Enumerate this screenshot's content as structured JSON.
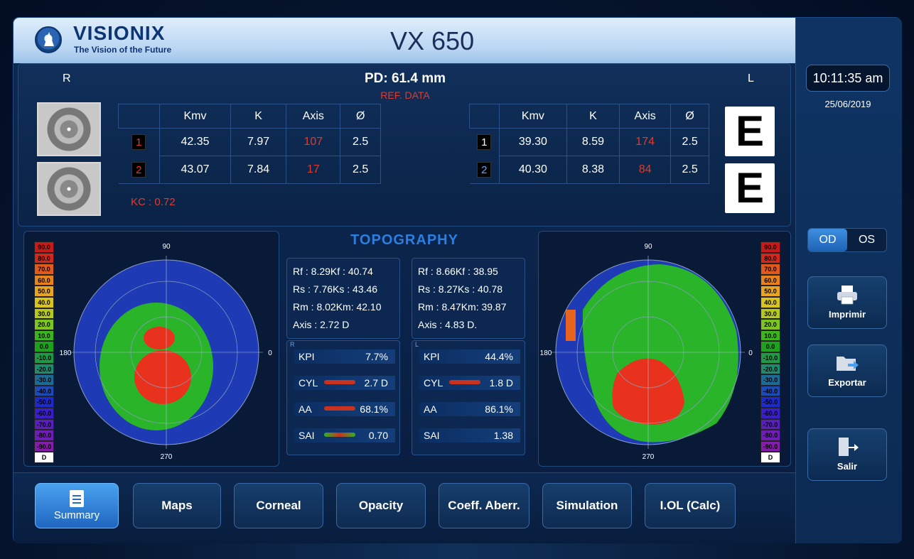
{
  "header": {
    "brand": "VISIONIX",
    "tagline": "The Vision of the Future",
    "model": "VX 650"
  },
  "right_rail": {
    "time": "10:11:35 am",
    "date": "25/06/2019",
    "eye_toggle": {
      "od": "OD",
      "os": "OS",
      "selected": "OD"
    },
    "buttons": {
      "print": "Imprimir",
      "export": "Exportar",
      "exit": "Salir"
    }
  },
  "info": {
    "right_label": "R",
    "left_label": "L",
    "pd": "PD: 61.4 mm",
    "ref": "REF. DATA",
    "headers": [
      "Kmv",
      "K",
      "Axis",
      "Ø"
    ],
    "right_rows": [
      {
        "index": "1",
        "kmv": "42.35",
        "k": "7.97",
        "axis": "107",
        "diam": "2.5"
      },
      {
        "index": "2",
        "kmv": "43.07",
        "k": "7.84",
        "axis": "17",
        "diam": "2.5"
      }
    ],
    "left_rows": [
      {
        "index": "1",
        "kmv": "39.30",
        "k": "8.59",
        "axis": "174",
        "diam": "2.5"
      },
      {
        "index": "2",
        "kmv": "40.30",
        "k": "8.38",
        "axis": "84",
        "diam": "2.5"
      }
    ],
    "kc": "KC :  0.72",
    "chart_letters": [
      "E",
      "E"
    ]
  },
  "topography": {
    "title": "TOPOGRAPHY",
    "scale": [
      "90.0",
      "80.0",
      "70.0",
      "60.0",
      "50.0",
      "40.0",
      "30.0",
      "20.0",
      "10.0",
      "0.0",
      "-10.0",
      "-20.0",
      "-30.0",
      "-40.0",
      "-50.0",
      "-60.0",
      "-70.0",
      "-80.0",
      "-90.0",
      "D"
    ],
    "scale_colors": [
      "#c81a1a",
      "#d2281e",
      "#e05a1e",
      "#e8821e",
      "#e8a41e",
      "#d8c41e",
      "#b4c81e",
      "#7cc41e",
      "#3cb41e",
      "#1ea21e",
      "#1e9a46",
      "#1e8a6e",
      "#1e6a96",
      "#1e4ab4",
      "#1e2ac8",
      "#3a1ec8",
      "#5a1ec0",
      "#6e1eb4",
      "#821ea8",
      "#ffffff"
    ],
    "right_stats": {
      "rf": "Rf :   8.29Kf : 40.74",
      "rs": "Rs :   7.76Ks : 43.46",
      "rm": "Rm :   8.02Km: 42.10",
      "axis": "Axis : 2.72 D"
    },
    "left_stats": {
      "rf": "Rf :   8.66Kf : 38.95",
      "rs": "Rs :   8.27Ks : 40.78",
      "rm": "Rm :   8.47Km: 39.87",
      "axis": "Axis : 4.83 D."
    },
    "right_indices": [
      {
        "name": "KPI",
        "value": "7.7%"
      },
      {
        "name": "CYL",
        "value": "2.7 D"
      },
      {
        "name": "AA",
        "value": "68.1%"
      },
      {
        "name": "SAI",
        "value": "0.70"
      }
    ],
    "left_indices": [
      {
        "name": "KPI",
        "value": "44.4%"
      },
      {
        "name": "CYL",
        "value": "1.8 D"
      },
      {
        "name": "AA",
        "value": "86.1%"
      },
      {
        "name": "SAI",
        "value": "1.38"
      }
    ],
    "axis_labels": [
      "90",
      "0",
      "180",
      "270"
    ],
    "box_tags": [
      "R",
      "L"
    ]
  },
  "tabs": [
    {
      "label": "Summary",
      "active": true
    },
    {
      "label": "Maps"
    },
    {
      "label": "Corneal"
    },
    {
      "label": "Opacity"
    },
    {
      "label": "Coeff. Aberr."
    },
    {
      "label": "Simulation"
    },
    {
      "label": "I.OL (Calc)"
    }
  ]
}
